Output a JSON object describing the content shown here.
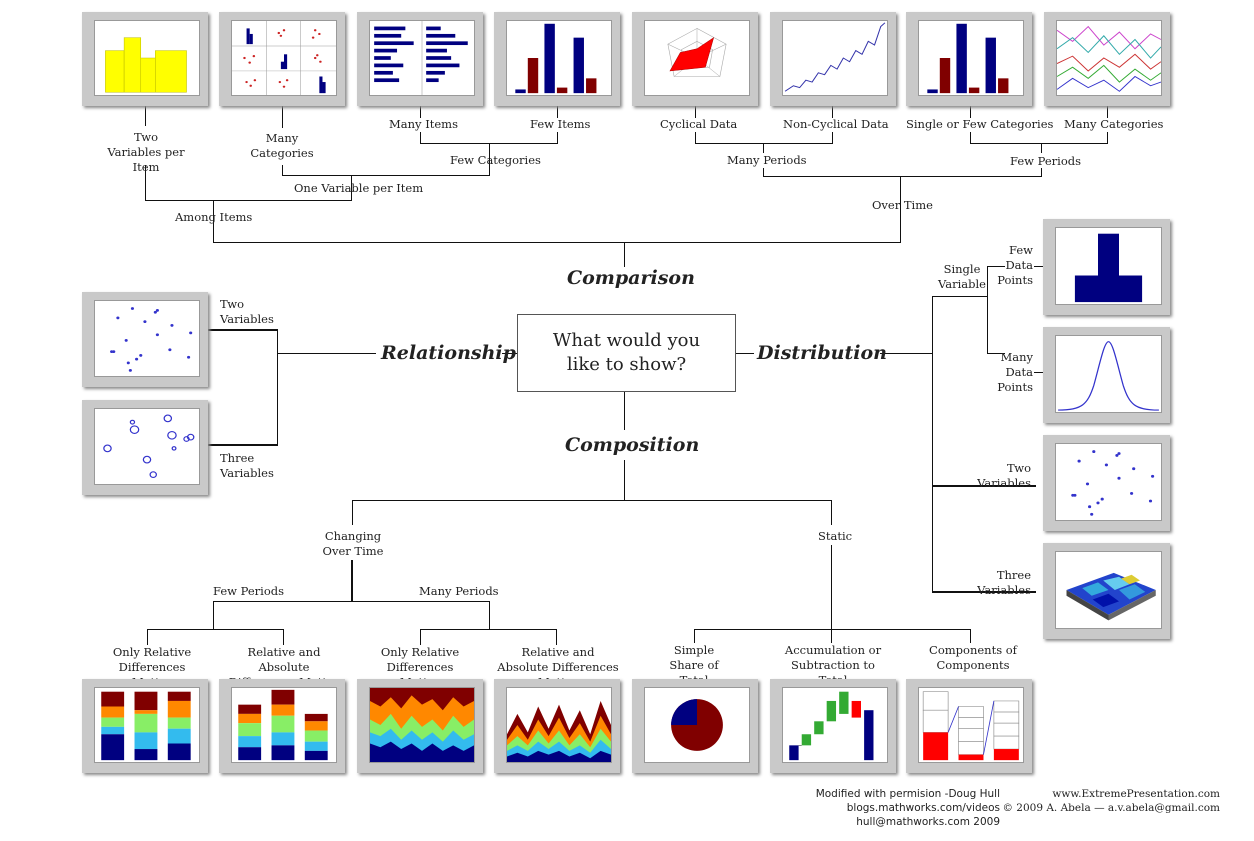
{
  "center": {
    "line1": "What would you",
    "line2": "like to show?"
  },
  "categories": {
    "comparison": "Comparison",
    "relationship": "Relationship",
    "distribution": "Distribution",
    "composition": "Composition"
  },
  "comparison": {
    "among_items": "Among Items",
    "over_time": "Over Time",
    "two_variables_per_item": "Two Variables per Item",
    "one_variable_per_item": "One Variable per Item",
    "many_categories": "Many Categories",
    "few_categories": "Few Categories",
    "many_items": "Many Items",
    "few_items": "Few Items",
    "many_periods": "Many Periods",
    "few_periods": "Few Periods",
    "cyclical_data": "Cyclical Data",
    "non_cyclical_data": "Non-Cyclical Data",
    "single_or_few_categories": "Single or Few Categories",
    "many_categories_time": "Many Categories"
  },
  "relationship": {
    "two_variables": "Two Variables",
    "three_variables": "Three Variables"
  },
  "distribution": {
    "single_variable": "Single Variable",
    "few_data_points": "Few Data Points",
    "many_data_points": "Many Data Points",
    "two_variables": "Two Variables",
    "three_variables": "Three Variables"
  },
  "composition": {
    "changing_over_time": "Changing Over Time",
    "static": "Static",
    "few_periods": "Few Periods",
    "many_periods": "Many Periods",
    "only_relative_1": "Only Relative Differences Matter",
    "relative_absolute_1": "Relative and Absolute Differences Matter",
    "only_relative_2": "Only Relative Differences Matter",
    "relative_absolute_2": "Relative and Absolute Differences Matter",
    "simple_share": "Simple Share of Total",
    "accumulation": "Accumulation or Subtraction to Total",
    "components": "Components of Components"
  },
  "footer": {
    "permission": "Modified with permision -Doug Hull",
    "blog": "blogs.mathworks.com/videos",
    "email_hull": "hull@mathworks.com 2009",
    "site": "www.ExtremePresentation.com",
    "copyright": "© 2009  A. Abela — a.v.abela@gmail.com"
  },
  "colors": {
    "navy": "#000080",
    "maroon": "#800000",
    "yellow": "#ffff00",
    "red": "#ff0000",
    "frame": "#c9c9c9"
  }
}
